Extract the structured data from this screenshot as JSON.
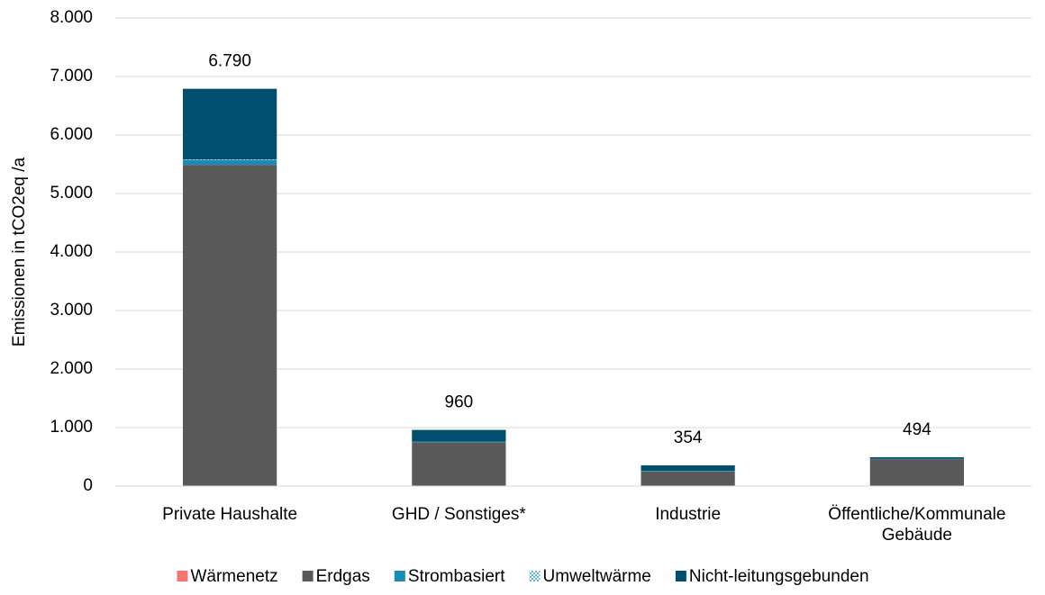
{
  "chart_data": {
    "type": "stacked_bar",
    "y_label": "Emissionen in tCO2eq /a",
    "categories": [
      "Private Haushalte",
      "GHD / Sonstiges*",
      "Industrie",
      "Öffentliche/Kommunale Gebäude"
    ],
    "series": [
      {
        "name": "Wärmenetz",
        "color": "#f8766d",
        "values": [
          0,
          0,
          0,
          0
        ]
      },
      {
        "name": "Erdgas",
        "color": "#595959",
        "values": [
          5490,
          750,
          250,
          460
        ]
      },
      {
        "name": "Strombasiert",
        "color": "#1a8bb9",
        "values": [
          80,
          10,
          10,
          5
        ]
      },
      {
        "name": "Umweltwärme",
        "color": "#9dd1e8",
        "values": [
          10,
          0,
          0,
          0
        ]
      },
      {
        "name": "Nicht-leitungsgebunden",
        "color": "#004f6e",
        "values": [
          1210,
          200,
          94,
          29
        ]
      }
    ],
    "totals": [
      {
        "value": 6790,
        "label": "6.790"
      },
      960,
      354,
      494
    ],
    "ylim": [
      0,
      8000
    ],
    "yticks": [
      0,
      {
        "value": 1000,
        "label": "1.000"
      },
      {
        "value": 2000,
        "label": "2.000"
      },
      {
        "value": 3000,
        "label": "3.000"
      },
      {
        "value": 4000,
        "label": "4.000"
      },
      {
        "value": 5000,
        "label": "5.000"
      },
      {
        "value": 6000,
        "label": "6.000"
      },
      {
        "value": 7000,
        "label": "7.000"
      },
      {
        "value": 8000,
        "label": "8.000"
      }
    ],
    "grid": true,
    "legend": "bottom"
  }
}
